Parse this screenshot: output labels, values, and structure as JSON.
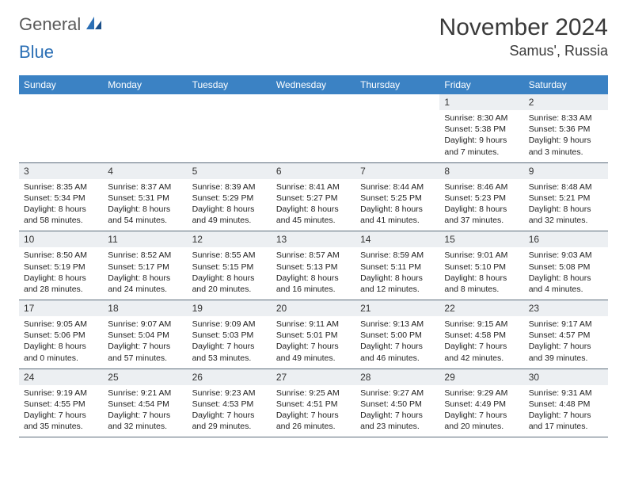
{
  "logo": {
    "text1": "General",
    "text2": "Blue"
  },
  "title": "November 2024",
  "location": "Samus', Russia",
  "colors": {
    "header_bg": "#3b82c4",
    "header_text": "#ffffff",
    "daynum_bg": "#eceff2",
    "border": "#5a6b7a",
    "logo_gray": "#5a5a5a",
    "logo_blue": "#2b6fb5"
  },
  "weekdays": [
    "Sunday",
    "Monday",
    "Tuesday",
    "Wednesday",
    "Thursday",
    "Friday",
    "Saturday"
  ],
  "weeks": [
    [
      {
        "empty": true
      },
      {
        "empty": true
      },
      {
        "empty": true
      },
      {
        "empty": true
      },
      {
        "empty": true
      },
      {
        "day": "1",
        "sunrise": "Sunrise: 8:30 AM",
        "sunset": "Sunset: 5:38 PM",
        "dl1": "Daylight: 9 hours",
        "dl2": "and 7 minutes."
      },
      {
        "day": "2",
        "sunrise": "Sunrise: 8:33 AM",
        "sunset": "Sunset: 5:36 PM",
        "dl1": "Daylight: 9 hours",
        "dl2": "and 3 minutes."
      }
    ],
    [
      {
        "day": "3",
        "sunrise": "Sunrise: 8:35 AM",
        "sunset": "Sunset: 5:34 PM",
        "dl1": "Daylight: 8 hours",
        "dl2": "and 58 minutes."
      },
      {
        "day": "4",
        "sunrise": "Sunrise: 8:37 AM",
        "sunset": "Sunset: 5:31 PM",
        "dl1": "Daylight: 8 hours",
        "dl2": "and 54 minutes."
      },
      {
        "day": "5",
        "sunrise": "Sunrise: 8:39 AM",
        "sunset": "Sunset: 5:29 PM",
        "dl1": "Daylight: 8 hours",
        "dl2": "and 49 minutes."
      },
      {
        "day": "6",
        "sunrise": "Sunrise: 8:41 AM",
        "sunset": "Sunset: 5:27 PM",
        "dl1": "Daylight: 8 hours",
        "dl2": "and 45 minutes."
      },
      {
        "day": "7",
        "sunrise": "Sunrise: 8:44 AM",
        "sunset": "Sunset: 5:25 PM",
        "dl1": "Daylight: 8 hours",
        "dl2": "and 41 minutes."
      },
      {
        "day": "8",
        "sunrise": "Sunrise: 8:46 AM",
        "sunset": "Sunset: 5:23 PM",
        "dl1": "Daylight: 8 hours",
        "dl2": "and 37 minutes."
      },
      {
        "day": "9",
        "sunrise": "Sunrise: 8:48 AM",
        "sunset": "Sunset: 5:21 PM",
        "dl1": "Daylight: 8 hours",
        "dl2": "and 32 minutes."
      }
    ],
    [
      {
        "day": "10",
        "sunrise": "Sunrise: 8:50 AM",
        "sunset": "Sunset: 5:19 PM",
        "dl1": "Daylight: 8 hours",
        "dl2": "and 28 minutes."
      },
      {
        "day": "11",
        "sunrise": "Sunrise: 8:52 AM",
        "sunset": "Sunset: 5:17 PM",
        "dl1": "Daylight: 8 hours",
        "dl2": "and 24 minutes."
      },
      {
        "day": "12",
        "sunrise": "Sunrise: 8:55 AM",
        "sunset": "Sunset: 5:15 PM",
        "dl1": "Daylight: 8 hours",
        "dl2": "and 20 minutes."
      },
      {
        "day": "13",
        "sunrise": "Sunrise: 8:57 AM",
        "sunset": "Sunset: 5:13 PM",
        "dl1": "Daylight: 8 hours",
        "dl2": "and 16 minutes."
      },
      {
        "day": "14",
        "sunrise": "Sunrise: 8:59 AM",
        "sunset": "Sunset: 5:11 PM",
        "dl1": "Daylight: 8 hours",
        "dl2": "and 12 minutes."
      },
      {
        "day": "15",
        "sunrise": "Sunrise: 9:01 AM",
        "sunset": "Sunset: 5:10 PM",
        "dl1": "Daylight: 8 hours",
        "dl2": "and 8 minutes."
      },
      {
        "day": "16",
        "sunrise": "Sunrise: 9:03 AM",
        "sunset": "Sunset: 5:08 PM",
        "dl1": "Daylight: 8 hours",
        "dl2": "and 4 minutes."
      }
    ],
    [
      {
        "day": "17",
        "sunrise": "Sunrise: 9:05 AM",
        "sunset": "Sunset: 5:06 PM",
        "dl1": "Daylight: 8 hours",
        "dl2": "and 0 minutes."
      },
      {
        "day": "18",
        "sunrise": "Sunrise: 9:07 AM",
        "sunset": "Sunset: 5:04 PM",
        "dl1": "Daylight: 7 hours",
        "dl2": "and 57 minutes."
      },
      {
        "day": "19",
        "sunrise": "Sunrise: 9:09 AM",
        "sunset": "Sunset: 5:03 PM",
        "dl1": "Daylight: 7 hours",
        "dl2": "and 53 minutes."
      },
      {
        "day": "20",
        "sunrise": "Sunrise: 9:11 AM",
        "sunset": "Sunset: 5:01 PM",
        "dl1": "Daylight: 7 hours",
        "dl2": "and 49 minutes."
      },
      {
        "day": "21",
        "sunrise": "Sunrise: 9:13 AM",
        "sunset": "Sunset: 5:00 PM",
        "dl1": "Daylight: 7 hours",
        "dl2": "and 46 minutes."
      },
      {
        "day": "22",
        "sunrise": "Sunrise: 9:15 AM",
        "sunset": "Sunset: 4:58 PM",
        "dl1": "Daylight: 7 hours",
        "dl2": "and 42 minutes."
      },
      {
        "day": "23",
        "sunrise": "Sunrise: 9:17 AM",
        "sunset": "Sunset: 4:57 PM",
        "dl1": "Daylight: 7 hours",
        "dl2": "and 39 minutes."
      }
    ],
    [
      {
        "day": "24",
        "sunrise": "Sunrise: 9:19 AM",
        "sunset": "Sunset: 4:55 PM",
        "dl1": "Daylight: 7 hours",
        "dl2": "and 35 minutes."
      },
      {
        "day": "25",
        "sunrise": "Sunrise: 9:21 AM",
        "sunset": "Sunset: 4:54 PM",
        "dl1": "Daylight: 7 hours",
        "dl2": "and 32 minutes."
      },
      {
        "day": "26",
        "sunrise": "Sunrise: 9:23 AM",
        "sunset": "Sunset: 4:53 PM",
        "dl1": "Daylight: 7 hours",
        "dl2": "and 29 minutes."
      },
      {
        "day": "27",
        "sunrise": "Sunrise: 9:25 AM",
        "sunset": "Sunset: 4:51 PM",
        "dl1": "Daylight: 7 hours",
        "dl2": "and 26 minutes."
      },
      {
        "day": "28",
        "sunrise": "Sunrise: 9:27 AM",
        "sunset": "Sunset: 4:50 PM",
        "dl1": "Daylight: 7 hours",
        "dl2": "and 23 minutes."
      },
      {
        "day": "29",
        "sunrise": "Sunrise: 9:29 AM",
        "sunset": "Sunset: 4:49 PM",
        "dl1": "Daylight: 7 hours",
        "dl2": "and 20 minutes."
      },
      {
        "day": "30",
        "sunrise": "Sunrise: 9:31 AM",
        "sunset": "Sunset: 4:48 PM",
        "dl1": "Daylight: 7 hours",
        "dl2": "and 17 minutes."
      }
    ]
  ]
}
